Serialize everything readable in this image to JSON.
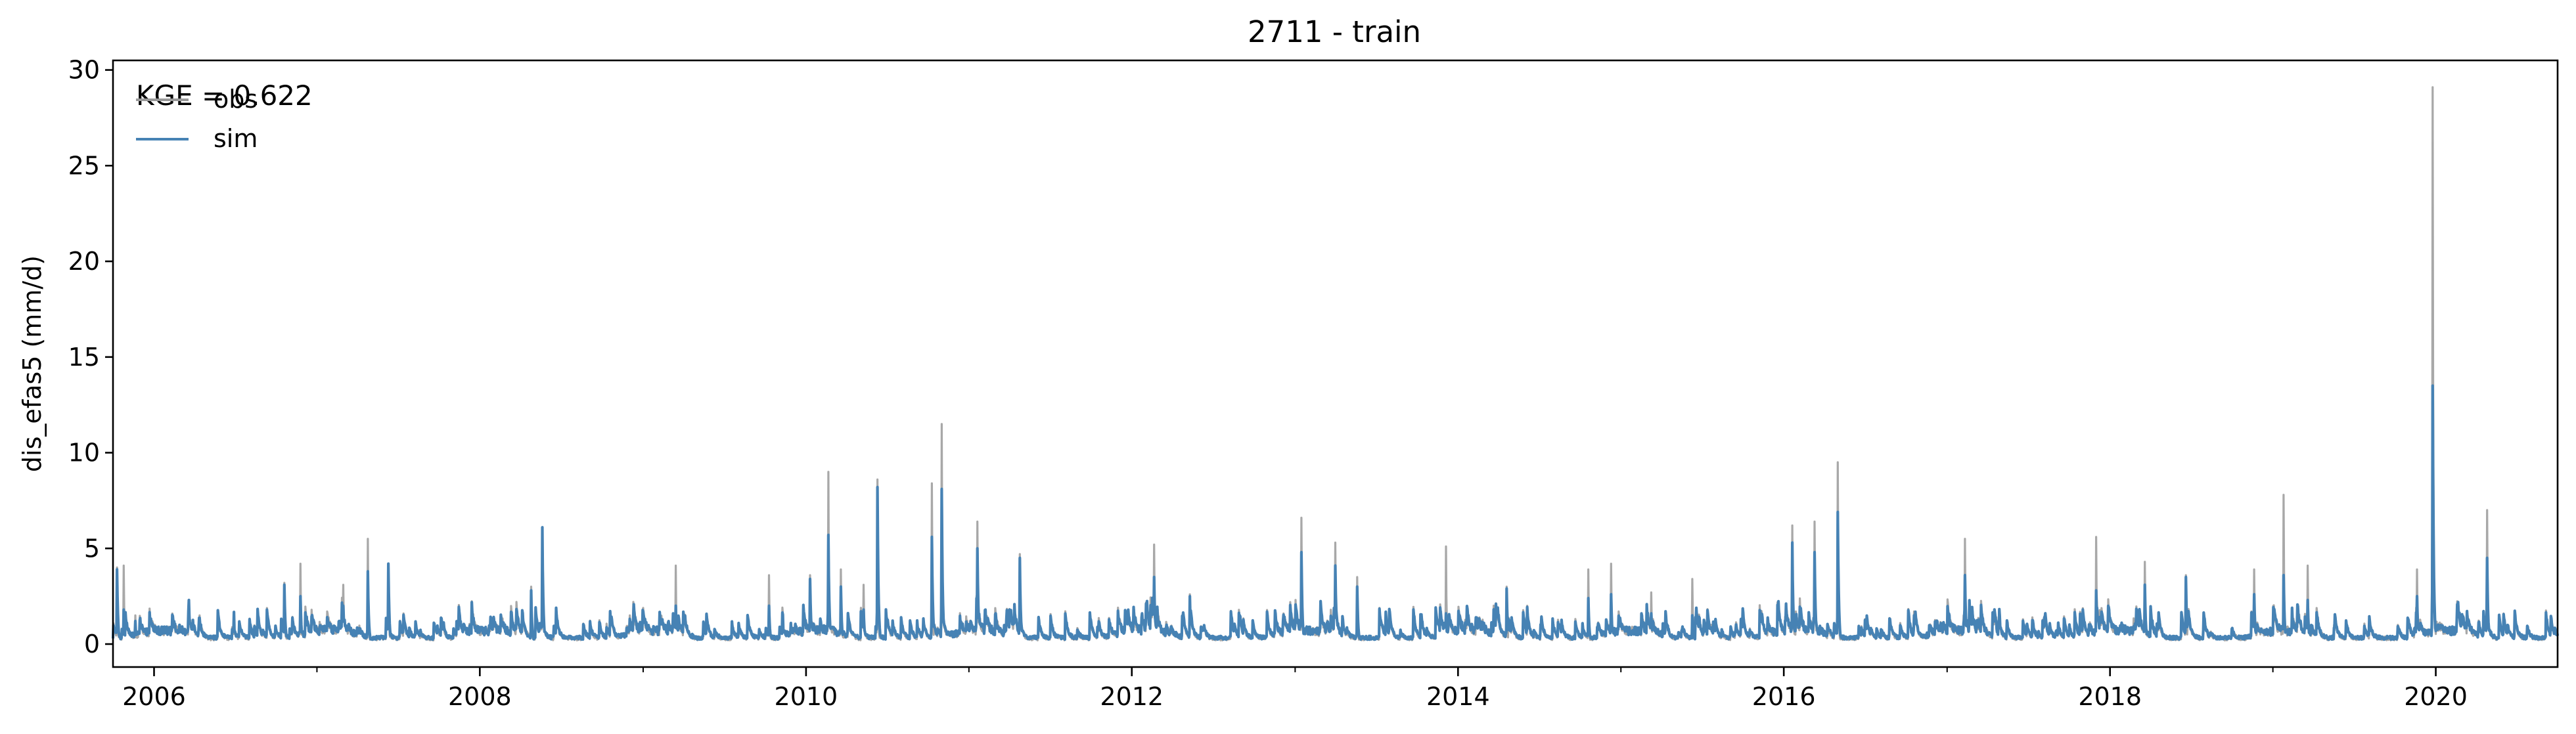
{
  "chart_data": {
    "type": "line",
    "title": "2711 - train",
    "xlabel": "",
    "ylabel": "dis_efas5 (mm/d)",
    "annotation": "KGE = 0.622",
    "x_range": [
      "2005-10-01",
      "2020-09-30"
    ],
    "ylim": [
      -1.2,
      30.5
    ],
    "y_ticks": [
      0,
      5,
      10,
      15,
      20,
      25,
      30
    ],
    "x_ticks": [
      "2006-01-01",
      "2008-01-01",
      "2010-01-01",
      "2012-01-01",
      "2014-01-01",
      "2016-01-01",
      "2018-01-01",
      "2020-01-01"
    ],
    "x_tick_labels": [
      "2006",
      "2008",
      "2010",
      "2012",
      "2014",
      "2016",
      "2018",
      "2020"
    ],
    "grid": false,
    "legend_placement": "top-left",
    "series": [
      {
        "name": "obs",
        "color": "#999999",
        "peaks": [
          [
            "2005-10-10",
            4.0
          ],
          [
            "2005-10-25",
            4.1
          ],
          [
            "2005-11-20",
            1.5
          ],
          [
            "2006-03-20",
            2.2
          ],
          [
            "2006-10-20",
            3.2
          ],
          [
            "2006-11-25",
            4.2
          ],
          [
            "2007-03-01",
            3.1
          ],
          [
            "2007-04-25",
            5.5
          ],
          [
            "2007-06-10",
            4.2
          ],
          [
            "2008-04-25",
            3.0
          ],
          [
            "2008-05-20",
            6.0
          ],
          [
            "2008-12-10",
            2.2
          ],
          [
            "2009-03-15",
            4.1
          ],
          [
            "2009-10-10",
            3.6
          ],
          [
            "2010-01-10",
            3.6
          ],
          [
            "2010-02-20",
            9.0
          ],
          [
            "2010-03-20",
            3.9
          ],
          [
            "2010-05-10",
            3.1
          ],
          [
            "2010-06-10",
            8.6
          ],
          [
            "2010-10-10",
            8.4
          ],
          [
            "2010-11-01",
            11.5
          ],
          [
            "2011-01-20",
            6.4
          ],
          [
            "2011-04-25",
            4.7
          ],
          [
            "2012-02-20",
            5.2
          ],
          [
            "2012-05-10",
            2.6
          ],
          [
            "2013-01-15",
            6.6
          ],
          [
            "2013-04-01",
            5.3
          ],
          [
            "2013-05-20",
            3.5
          ],
          [
            "2013-12-05",
            5.1
          ],
          [
            "2014-04-20",
            3.0
          ],
          [
            "2014-10-20",
            3.9
          ],
          [
            "2014-12-10",
            4.2
          ],
          [
            "2015-03-10",
            2.7
          ],
          [
            "2015-06-10",
            3.4
          ],
          [
            "2016-01-20",
            6.2
          ],
          [
            "2016-03-10",
            6.4
          ],
          [
            "2016-05-01",
            9.5
          ],
          [
            "2017-02-10",
            5.5
          ],
          [
            "2017-12-01",
            5.6
          ],
          [
            "2018-03-20",
            4.3
          ],
          [
            "2018-06-20",
            3.6
          ],
          [
            "2018-11-20",
            3.9
          ],
          [
            "2019-01-25",
            7.8
          ],
          [
            "2019-03-20",
            4.1
          ],
          [
            "2019-11-20",
            3.9
          ],
          [
            "2019-12-25",
            29.1
          ],
          [
            "2020-04-25",
            7.0
          ]
        ]
      },
      {
        "name": "sim",
        "color": "#4682b4",
        "peaks": [
          [
            "2005-10-10",
            3.9
          ],
          [
            "2005-10-25",
            1.8
          ],
          [
            "2005-11-20",
            1.2
          ],
          [
            "2006-03-20",
            2.3
          ],
          [
            "2006-10-20",
            3.1
          ],
          [
            "2006-11-25",
            2.5
          ],
          [
            "2007-03-01",
            2.0
          ],
          [
            "2007-04-25",
            3.8
          ],
          [
            "2007-06-10",
            4.2
          ],
          [
            "2008-04-25",
            2.8
          ],
          [
            "2008-05-20",
            6.1
          ],
          [
            "2008-12-10",
            1.5
          ],
          [
            "2009-03-15",
            2.0
          ],
          [
            "2009-10-10",
            2.0
          ],
          [
            "2010-01-10",
            3.4
          ],
          [
            "2010-02-20",
            5.7
          ],
          [
            "2010-03-20",
            3.0
          ],
          [
            "2010-05-10",
            1.8
          ],
          [
            "2010-06-10",
            8.2
          ],
          [
            "2010-10-10",
            5.6
          ],
          [
            "2010-11-01",
            8.1
          ],
          [
            "2011-01-20",
            5.0
          ],
          [
            "2011-04-25",
            4.5
          ],
          [
            "2012-02-20",
            3.5
          ],
          [
            "2012-05-10",
            2.5
          ],
          [
            "2013-01-15",
            4.8
          ],
          [
            "2013-04-01",
            4.1
          ],
          [
            "2013-05-20",
            3.0
          ],
          [
            "2013-12-05",
            1.6
          ],
          [
            "2014-04-20",
            2.9
          ],
          [
            "2014-10-20",
            2.4
          ],
          [
            "2014-12-10",
            2.6
          ],
          [
            "2015-03-10",
            1.6
          ],
          [
            "2015-06-10",
            1.5
          ],
          [
            "2016-01-20",
            5.3
          ],
          [
            "2016-03-10",
            4.8
          ],
          [
            "2016-05-01",
            6.9
          ],
          [
            "2017-02-10",
            3.6
          ],
          [
            "2017-12-01",
            2.8
          ],
          [
            "2018-03-20",
            3.1
          ],
          [
            "2018-06-20",
            3.5
          ],
          [
            "2018-11-20",
            2.6
          ],
          [
            "2019-01-25",
            3.6
          ],
          [
            "2019-03-20",
            2.3
          ],
          [
            "2019-11-20",
            2.5
          ],
          [
            "2019-12-25",
            13.5
          ],
          [
            "2020-04-25",
            4.5
          ]
        ]
      }
    ]
  }
}
